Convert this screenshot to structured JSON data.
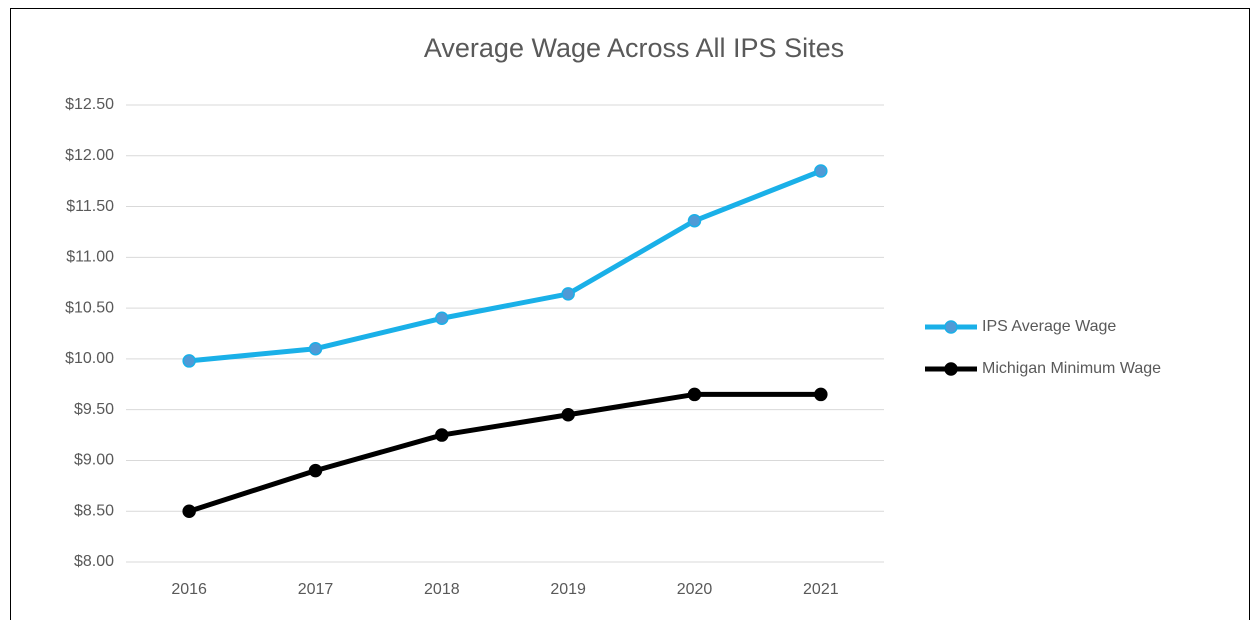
{
  "chart_data": {
    "type": "line",
    "title": "Average Wage Across All IPS Sites",
    "categories": [
      "2016",
      "2017",
      "2018",
      "2019",
      "2020",
      "2021"
    ],
    "series": [
      {
        "name": "IPS Average Wage",
        "color": "#1ab0e8",
        "marker_color": "#4f9ad6",
        "values": [
          9.98,
          10.1,
          10.4,
          10.64,
          11.36,
          11.85
        ]
      },
      {
        "name": "Michigan Minimum Wage",
        "color": "#000000",
        "marker_color": "#000000",
        "values": [
          8.5,
          8.9,
          9.25,
          9.45,
          9.65,
          9.65
        ]
      }
    ],
    "ylim": [
      8,
      12.5
    ],
    "yticks": [
      {
        "value": 8,
        "label": "$8.00"
      },
      {
        "value": 8.5,
        "label": "$8.50"
      },
      {
        "value": 9,
        "label": "$9.00"
      },
      {
        "value": 9.5,
        "label": "$9.50"
      },
      {
        "value": 10,
        "label": "$10.00"
      },
      {
        "value": 10.5,
        "label": "$10.50"
      },
      {
        "value": 11,
        "label": "$11.00"
      },
      {
        "value": 11.5,
        "label": "$11.50"
      },
      {
        "value": 12,
        "label": "$12.00"
      },
      {
        "value": 12.5,
        "label": "$12.50"
      }
    ],
    "grid": true,
    "legend": "right"
  }
}
